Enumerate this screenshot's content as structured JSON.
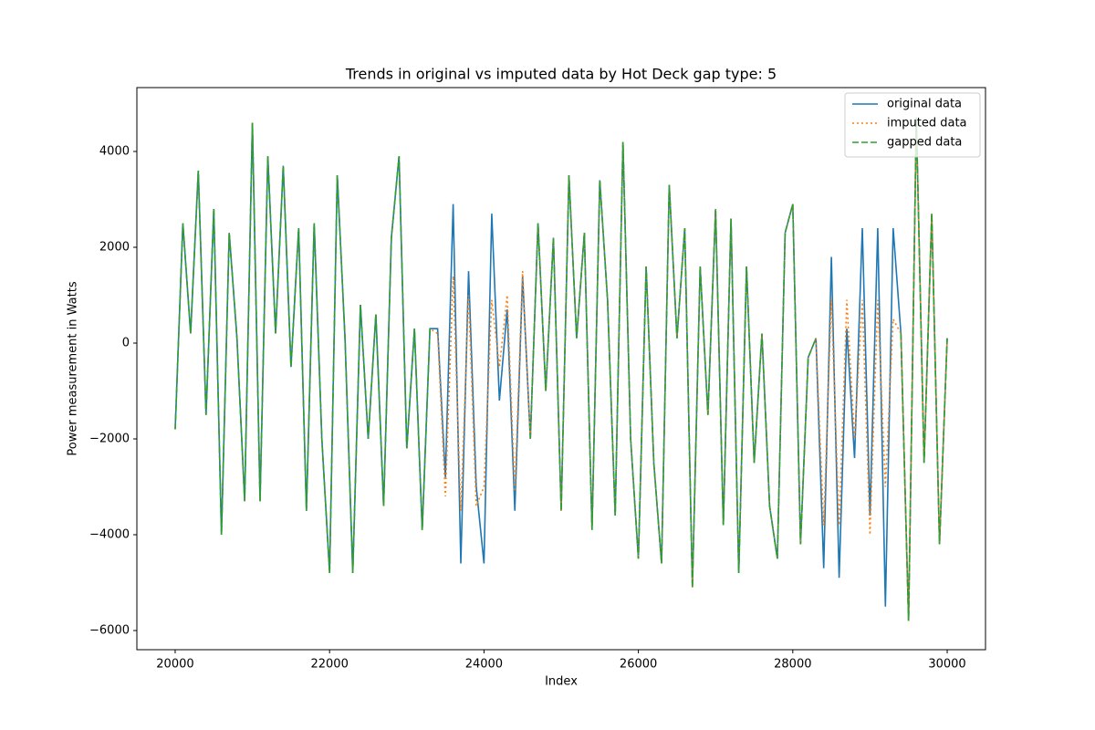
{
  "chart_data": {
    "type": "line",
    "title": "Trends in original vs imputed data by Hot Deck gap type: 5",
    "xlabel": "Index",
    "ylabel": "Power measurement in Watts",
    "x": [
      20000,
      20100,
      20200,
      20300,
      20400,
      20500,
      20600,
      20700,
      20800,
      20900,
      21000,
      21100,
      21200,
      21300,
      21400,
      21500,
      21600,
      21700,
      21800,
      21900,
      22000,
      22100,
      22200,
      22300,
      22400,
      22500,
      22600,
      22700,
      22800,
      22900,
      23000,
      23100,
      23200,
      23300,
      23400,
      23500,
      23600,
      23700,
      23800,
      23900,
      24000,
      24100,
      24200,
      24300,
      24400,
      24500,
      24600,
      24700,
      24800,
      24900,
      25000,
      25100,
      25200,
      25300,
      25400,
      25500,
      25600,
      25700,
      25800,
      25900,
      26000,
      26100,
      26200,
      26300,
      26400,
      26500,
      26600,
      26700,
      26800,
      26900,
      27000,
      27100,
      27200,
      27300,
      27400,
      27500,
      27600,
      27700,
      27800,
      27900,
      28000,
      28100,
      28200,
      28300,
      28400,
      28500,
      28600,
      28700,
      28800,
      28900,
      29000,
      29100,
      29200,
      29300,
      29400,
      29500,
      29600,
      29700,
      29800,
      29900,
      30000
    ],
    "series": [
      {
        "name": "original data",
        "color": "#1f77b4",
        "dash": "solid",
        "values": [
          -1800,
          2500,
          200,
          3600,
          -1500,
          2800,
          -4000,
          2300,
          100,
          -3300,
          4600,
          -3300,
          3900,
          200,
          3700,
          -500,
          2400,
          -3500,
          2500,
          -2000,
          -4800,
          3500,
          100,
          -4800,
          800,
          -2000,
          600,
          -3400,
          2200,
          3900,
          -2200,
          300,
          -3900,
          300,
          300,
          -2800,
          2900,
          -4600,
          1500,
          -3000,
          -4600,
          2700,
          -1200,
          700,
          -3500,
          1400,
          -2000,
          2500,
          -1000,
          2200,
          -3500,
          3500,
          100,
          2300,
          -3900,
          3400,
          900,
          -3600,
          4200,
          -2000,
          -4500,
          1600,
          -2500,
          -4600,
          3300,
          100,
          2400,
          -5100,
          1600,
          -1500,
          2800,
          -3800,
          2600,
          -4800,
          1600,
          -2500,
          200,
          -3400,
          -4500,
          2300,
          2900,
          -4200,
          -300,
          100,
          -4700,
          1800,
          -4900,
          300,
          -2400,
          2400,
          -3600,
          2400,
          -5500,
          2400,
          200,
          -5800,
          4700,
          -2500,
          2700,
          -4200,
          100
        ]
      },
      {
        "name": "imputed data",
        "color": "#ff7f0e",
        "dash": "dotted",
        "values": [
          -1800,
          2500,
          200,
          3600,
          -1500,
          2800,
          -4000,
          2300,
          100,
          -3300,
          4600,
          -3300,
          3900,
          200,
          3700,
          -500,
          2400,
          -3500,
          2500,
          -2000,
          -4800,
          3500,
          100,
          -4800,
          800,
          -2000,
          600,
          -3400,
          2200,
          3900,
          -2200,
          300,
          -3900,
          300,
          200,
          -3200,
          1400,
          -3500,
          1000,
          -3400,
          -3000,
          900,
          -500,
          1000,
          -3100,
          1500,
          -2000,
          2500,
          -1000,
          2200,
          -3500,
          3500,
          100,
          2300,
          -3900,
          3400,
          900,
          -3600,
          4200,
          -2000,
          -4500,
          1600,
          -2500,
          -4600,
          3300,
          100,
          2400,
          -5100,
          1600,
          -1500,
          2800,
          -3800,
          2600,
          -4800,
          1600,
          -2500,
          200,
          -3400,
          -4500,
          2300,
          2900,
          -4200,
          -300,
          100,
          -3800,
          900,
          -3800,
          900,
          -2000,
          900,
          -4000,
          900,
          -3000,
          500,
          200,
          -5800,
          4700,
          -2500,
          2700,
          -4200,
          100
        ]
      },
      {
        "name": "gapped data",
        "color": "#2ca02c",
        "dash": "dashed",
        "values": [
          -1800,
          2500,
          200,
          3600,
          -1500,
          2800,
          -4000,
          2300,
          100,
          -3300,
          4600,
          -3300,
          3900,
          200,
          3700,
          -500,
          2400,
          -3500,
          2500,
          -2000,
          -4800,
          3500,
          100,
          -4800,
          800,
          -2000,
          600,
          -3400,
          2200,
          3900,
          -2200,
          300,
          -3900,
          300,
          null,
          null,
          null,
          null,
          null,
          null,
          null,
          null,
          null,
          null,
          null,
          null,
          -2000,
          2500,
          -1000,
          2200,
          -3500,
          3500,
          100,
          2300,
          -3900,
          3400,
          900,
          -3600,
          4200,
          -2000,
          -4500,
          1600,
          -2500,
          -4600,
          3300,
          100,
          2400,
          -5100,
          1600,
          -1500,
          2800,
          -3800,
          2600,
          -4800,
          1600,
          -2500,
          200,
          -3400,
          -4500,
          2300,
          2900,
          -4200,
          -300,
          100,
          null,
          null,
          null,
          null,
          null,
          null,
          null,
          null,
          null,
          null,
          200,
          -5800,
          4700,
          -2500,
          2700,
          -4200,
          100
        ]
      }
    ],
    "xlim": [
      19504,
      30496
    ],
    "ylim": [
      -6400,
      5333
    ],
    "xticks": [
      20000,
      22000,
      24000,
      26000,
      28000,
      30000
    ],
    "yticks": [
      {
        "value": -6000,
        "label": "−6000"
      },
      {
        "value": -4000,
        "label": "−4000"
      },
      {
        "value": -2000,
        "label": "−2000"
      },
      0,
      2000,
      4000
    ],
    "legend": "upper right"
  }
}
